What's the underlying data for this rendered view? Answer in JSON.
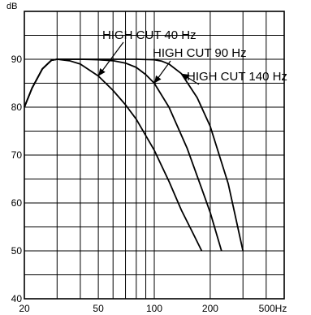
{
  "chart_data": {
    "type": "line",
    "title": "",
    "xlabel": "",
    "ylabel": "",
    "x_scale": "log",
    "xlim": [
      20,
      500
    ],
    "ylim": [
      40,
      100
    ],
    "grid": true,
    "legend": "none",
    "y_unit": "dB",
    "x_unit": "Hz",
    "xticks": [
      20,
      50,
      100,
      200,
      500
    ],
    "xtick_labels": [
      "20",
      "50",
      "100",
      "200",
      "500Hz"
    ],
    "yticks": [
      40,
      50,
      60,
      70,
      80,
      90
    ],
    "ytick_labels": [
      "40",
      "50",
      "60",
      "70",
      "80",
      "90"
    ],
    "series": [
      {
        "name": "HIGH CUT 40 Hz",
        "x": [
          20,
          22,
          25,
          28,
          30,
          35,
          40,
          50,
          60,
          70,
          80,
          100,
          120,
          140,
          160,
          180
        ],
        "y": [
          80,
          84,
          88,
          89.8,
          90,
          89.7,
          89,
          86.5,
          83.5,
          80.5,
          77.5,
          71,
          64.5,
          58.5,
          54,
          50
        ]
      },
      {
        "name": "HIGH CUT 90 Hz",
        "x": [
          20,
          22,
          25,
          28,
          30,
          35,
          40,
          50,
          60,
          70,
          80,
          90,
          100,
          120,
          150,
          180,
          200,
          230
        ],
        "y": [
          80,
          84,
          88,
          89.8,
          90,
          90,
          90,
          89.9,
          89.7,
          89.2,
          88.3,
          86.8,
          85,
          80,
          71.5,
          63,
          58,
          50
        ]
      },
      {
        "name": "HIGH CUT 140 Hz",
        "x": [
          20,
          22,
          25,
          28,
          30,
          40,
          60,
          80,
          100,
          110,
          120,
          140,
          170,
          200,
          250,
          300
        ],
        "y": [
          80,
          84,
          88,
          89.8,
          90,
          90,
          90,
          90,
          89.9,
          89.6,
          89,
          87,
          82,
          76,
          64,
          50
        ]
      }
    ],
    "annotations": [
      {
        "text": "HIGH CUT 40 Hz",
        "series": 0
      },
      {
        "text": "HIGH CUT 90 Hz",
        "series": 1
      },
      {
        "text": "HIGH CUT 140 Hz",
        "series": 2
      }
    ],
    "axis_color": "#000000",
    "line_color": "#000000"
  }
}
